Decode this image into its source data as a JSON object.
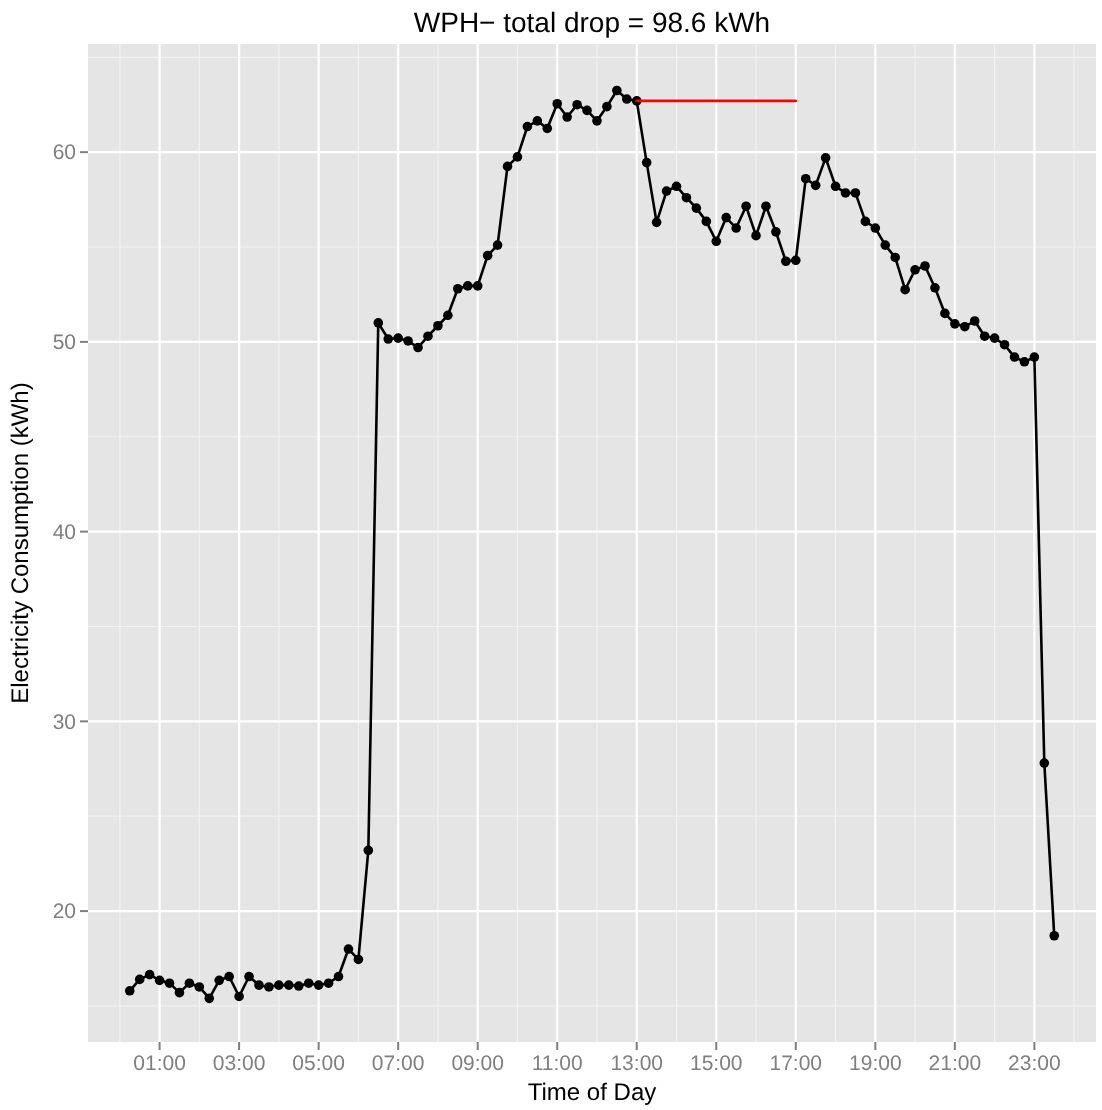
{
  "chart_data": {
    "type": "line",
    "title": "WPH− total drop = 98.6 kWh",
    "xlabel": "Time of Day",
    "ylabel": "Electricity Consumption (kWh)",
    "xlim": [
      -0.8,
      24.55
    ],
    "ylim": [
      13.1,
      65.7
    ],
    "xticks": [
      {
        "value": 1,
        "label": "01:00"
      },
      {
        "value": 3,
        "label": "03:00"
      },
      {
        "value": 5,
        "label": "05:00"
      },
      {
        "value": 7,
        "label": "07:00"
      },
      {
        "value": 9,
        "label": "09:00"
      },
      {
        "value": 11,
        "label": "11:00"
      },
      {
        "value": 13,
        "label": "13:00"
      },
      {
        "value": 15,
        "label": "15:00"
      },
      {
        "value": 17,
        "label": "17:00"
      },
      {
        "value": 19,
        "label": "19:00"
      },
      {
        "value": 21,
        "label": "21:00"
      },
      {
        "value": 23,
        "label": "23:00"
      }
    ],
    "yticks": [
      20,
      30,
      40,
      50,
      60
    ],
    "grid": true,
    "marker": "circle",
    "line_style": "solid",
    "series": [
      {
        "color": "#000000",
        "x": [
          0.25,
          0.5,
          0.75,
          1,
          1.25,
          1.5,
          1.75,
          2,
          2.25,
          2.5,
          2.75,
          3,
          3.25,
          3.5,
          3.75,
          4,
          4.25,
          4.5,
          4.75,
          5,
          5.25,
          5.5,
          5.75,
          6,
          6.25,
          6.5,
          6.75,
          7,
          7.25,
          7.5,
          7.75,
          8,
          8.25,
          8.5,
          8.75,
          9,
          9.25,
          9.5,
          9.75,
          10,
          10.25,
          10.5,
          10.75,
          11,
          11.25,
          11.5,
          11.75,
          12,
          12.25,
          12.5,
          12.75,
          13,
          13.25,
          13.5,
          13.75,
          14,
          14.25,
          14.5,
          14.75,
          15,
          15.25,
          15.5,
          15.75,
          16,
          16.25,
          16.5,
          16.75,
          17,
          17.25,
          17.5,
          17.75,
          18,
          18.25,
          18.5,
          18.75,
          19,
          19.25,
          19.5,
          19.75,
          20,
          20.25,
          20.5,
          20.75,
          21,
          21.25,
          21.5,
          21.75,
          22,
          22.25,
          22.5,
          22.75,
          23,
          23.25,
          23.5
        ],
        "values": [
          15.8,
          16.4,
          16.65,
          16.35,
          16.2,
          15.7,
          16.2,
          16.0,
          15.4,
          16.35,
          16.55,
          15.5,
          16.55,
          16.1,
          16.0,
          16.1,
          16.1,
          16.05,
          16.2,
          16.1,
          16.2,
          16.55,
          18.0,
          17.45,
          23.2,
          51.0,
          50.15,
          50.2,
          50.05,
          49.7,
          50.3,
          50.85,
          51.4,
          52.8,
          52.95,
          52.95,
          54.55,
          55.1,
          59.25,
          59.75,
          61.35,
          61.65,
          61.25,
          62.55,
          61.85,
          62.5,
          62.2,
          61.65,
          62.4,
          63.25,
          62.8,
          62.7,
          59.45,
          56.3,
          57.95,
          58.2,
          57.6,
          57.05,
          56.35,
          55.3,
          56.55,
          56.0,
          57.15,
          55.6,
          57.15,
          55.8,
          54.25,
          54.3,
          58.6,
          58.25,
          59.7,
          58.2,
          57.85,
          57.85,
          56.35,
          56.0,
          55.1,
          54.45,
          52.75,
          53.8,
          54.0,
          52.85,
          51.5,
          50.95,
          50.8,
          51.1,
          50.3,
          50.2,
          49.85,
          49.2,
          48.95,
          49.2,
          27.8,
          18.7
        ]
      },
      {
        "color": "#ff0000",
        "marker": "none",
        "x": [
          13,
          17
        ],
        "values": [
          62.7,
          62.7
        ]
      }
    ]
  }
}
